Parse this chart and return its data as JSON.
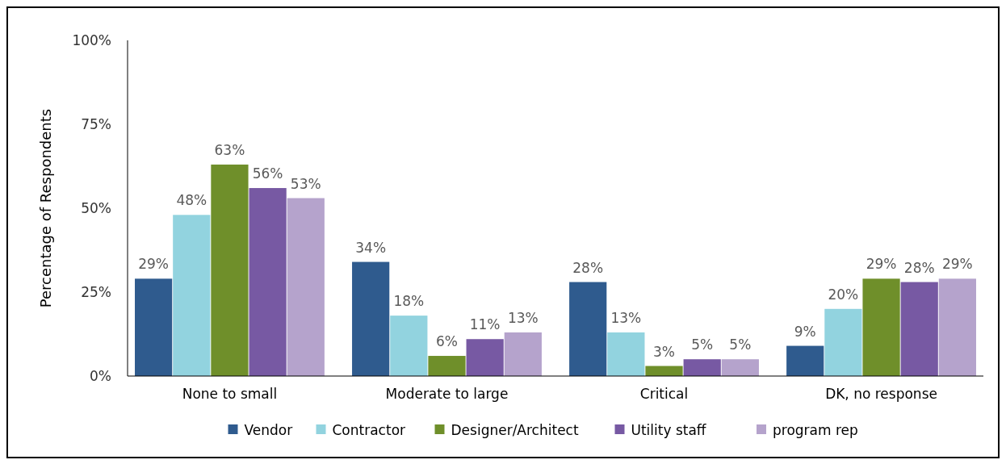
{
  "chart_data": {
    "type": "bar",
    "ylabel": "Percentage of Respondents",
    "categories": [
      "None to small",
      "Moderate to large",
      "Critical",
      "DK, no response"
    ],
    "series": [
      {
        "name": "Vendor",
        "color": "#2f5b8e",
        "values": [
          29,
          34,
          28,
          9
        ],
        "value_labels": [
          "29%",
          "34%",
          "28%",
          "9%"
        ]
      },
      {
        "name": "Contractor",
        "color": "#92d3df",
        "values": [
          48,
          18,
          13,
          20
        ],
        "value_labels": [
          "48%",
          "18%",
          "13%",
          "20%"
        ]
      },
      {
        "name": "Designer/Architect",
        "color": "#6f8f2a",
        "values": [
          63,
          6,
          3,
          29
        ],
        "value_labels": [
          "63%",
          "6%",
          "3%",
          "29%"
        ]
      },
      {
        "name": "Utility staff",
        "color": "#7759a3",
        "values": [
          56,
          11,
          5,
          28
        ],
        "value_labels": [
          "56%",
          "11%",
          "5%",
          "28%"
        ]
      },
      {
        "name": "program rep",
        "color": "#b5a3cc",
        "values": [
          53,
          13,
          5,
          29
        ],
        "value_labels": [
          "53%",
          "13%",
          "5%",
          "29%"
        ]
      }
    ],
    "ylim": [
      0,
      100
    ],
    "yticks": [
      {
        "value": 0,
        "label": "0%"
      },
      {
        "value": 25,
        "label": "25%"
      },
      {
        "value": 50,
        "label": "50%"
      },
      {
        "value": 75,
        "label": "75%"
      },
      {
        "value": 100,
        "label": "100%"
      }
    ],
    "legend": "bottom"
  }
}
